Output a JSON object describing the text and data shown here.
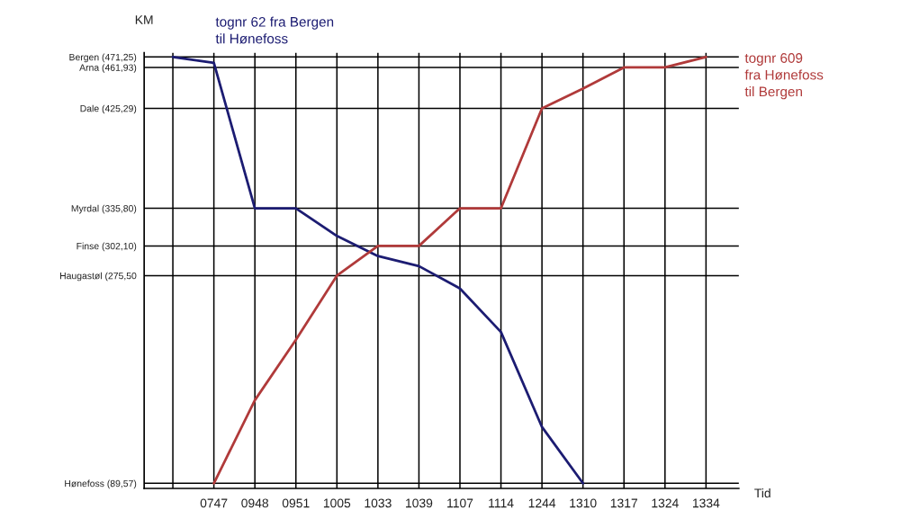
{
  "chart_data": {
    "type": "line",
    "xlabel": "Tid",
    "ylabel": "KM",
    "categories": [
      null,
      "0747",
      "0948",
      "0951",
      "1005",
      "1033",
      "1039",
      "1107",
      "1114",
      "1244",
      "1310",
      "1317",
      "1324",
      "1334"
    ],
    "ylim": [
      85,
      475
    ],
    "yticks": [
      {
        "value": 89.57,
        "label": "Hønefoss (89,57)"
      },
      {
        "value": 275.5,
        "label": "Haugastøl (275,50"
      },
      {
        "value": 302.1,
        "label": "Finse (302,10)"
      },
      {
        "value": 335.8,
        "label": "Myrdal (335,80)"
      },
      {
        "value": 425.29,
        "label": "Dale (425,29)"
      },
      {
        "value": 461.93,
        "label": "Arna (461,93)"
      },
      {
        "value": 471.25,
        "label": "Bergen (471,25)"
      }
    ],
    "grid": true,
    "legend": false,
    "marker": "none",
    "line_style": "solid",
    "series": [
      {
        "name": "tognr 62 fra Bergen\ntil Hønefoss",
        "color": "#1c1c72",
        "values": [
          471.25,
          466,
          335.8,
          335.8,
          311,
          293,
          284,
          264,
          225,
          140,
          89.57,
          null,
          null,
          null
        ]
      },
      {
        "name": "tognr 609\nfra Hønefoss\ntil Bergen",
        "color": "#b03a3a",
        "values": [
          null,
          89.57,
          164,
          218,
          275.5,
          302.1,
          302.1,
          335.8,
          335.8,
          425.29,
          443,
          461.93,
          461.93,
          471.25
        ]
      }
    ]
  }
}
